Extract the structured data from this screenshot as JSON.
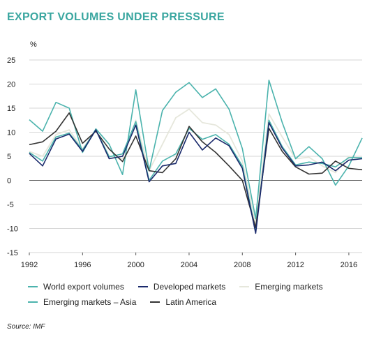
{
  "title": "EXPORT VOLUMES UNDER PRESSURE",
  "unit": "%",
  "source": "Source: IMF",
  "chart_data": {
    "type": "line",
    "x": [
      1992,
      1993,
      1994,
      1995,
      1996,
      1997,
      1998,
      1999,
      2000,
      2001,
      2002,
      2003,
      2004,
      2005,
      2006,
      2007,
      2008,
      2009,
      2010,
      2011,
      2012,
      2013,
      2014,
      2015,
      2016,
      2017
    ],
    "xticks": [
      1992,
      1996,
      2000,
      2004,
      2008,
      2012,
      2016
    ],
    "yticks": [
      25,
      20,
      15,
      10,
      5,
      0,
      -5,
      -10,
      -15
    ],
    "xlim": [
      1992,
      2017
    ],
    "ylim": [
      -15,
      25
    ],
    "grid": "horizontal",
    "legend_position": "bottom",
    "series": [
      {
        "name": "World export volumes",
        "color": "#4bb3ad",
        "values": [
          5.8,
          4.0,
          9.0,
          9.8,
          6.3,
          10.5,
          4.9,
          5.5,
          12.2,
          0.0,
          4.0,
          5.5,
          10.8,
          8.5,
          9.5,
          7.5,
          3.0,
          -10.6,
          12.5,
          7.0,
          3.2,
          3.8,
          3.5,
          2.8,
          4.7,
          4.7
        ]
      },
      {
        "name": "Developed markets",
        "color": "#1a2a6c",
        "values": [
          5.6,
          3.0,
          8.6,
          9.6,
          6.0,
          10.5,
          4.5,
          5.0,
          11.5,
          -0.3,
          3.0,
          3.5,
          10.0,
          6.3,
          8.8,
          7.2,
          2.5,
          -11.0,
          12.0,
          6.7,
          3.0,
          3.2,
          3.8,
          2.0,
          4.2,
          4.5
        ]
      },
      {
        "name": "Emerging markets",
        "color": "#e6e7dc",
        "values": [
          6.0,
          5.0,
          9.5,
          10.5,
          6.5,
          10.5,
          5.0,
          4.5,
          12.5,
          2.0,
          7.5,
          13.0,
          14.8,
          12.0,
          11.5,
          9.5,
          4.0,
          -9.0,
          13.8,
          9.0,
          4.5,
          4.8,
          3.0,
          1.6,
          5.0,
          4.5
        ]
      },
      {
        "name": "Emerging markets – Asia",
        "color": "#4bb3ad",
        "values": [
          12.6,
          10.2,
          16.2,
          15.0,
          5.8,
          10.7,
          7.5,
          1.2,
          18.8,
          2.0,
          14.5,
          18.3,
          20.3,
          17.2,
          19.0,
          14.8,
          6.6,
          -8.0,
          20.8,
          12.0,
          4.5,
          7.0,
          4.5,
          -1.0,
          3.0,
          8.8
        ]
      },
      {
        "name": "Latin America",
        "color": "#333333",
        "values": [
          7.4,
          8.0,
          10.2,
          14.0,
          7.7,
          10.2,
          6.5,
          3.9,
          9.2,
          2.0,
          1.6,
          4.5,
          11.2,
          8.0,
          5.8,
          3.0,
          0.0,
          -9.8,
          10.8,
          6.0,
          2.8,
          1.3,
          1.5,
          4.0,
          2.5,
          2.2
        ]
      }
    ]
  }
}
